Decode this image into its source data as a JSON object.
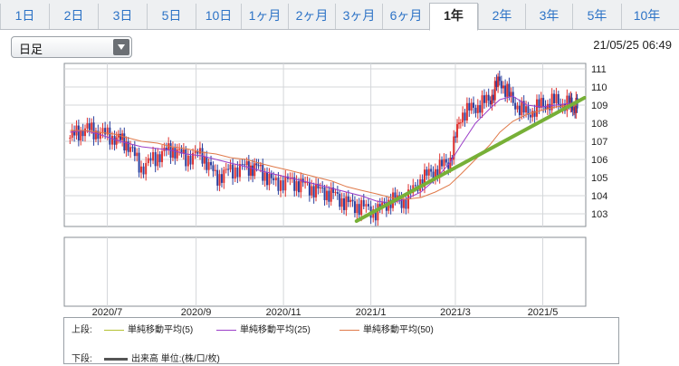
{
  "tabs": [
    "1日",
    "2日",
    "3日",
    "5日",
    "10日",
    "1ヶ月",
    "2ヶ月",
    "3ヶ月",
    "6ヶ月",
    "1年",
    "2年",
    "3年",
    "5年",
    "10年"
  ],
  "active_tab": "1年",
  "period_select": {
    "value": "日足"
  },
  "timestamp": "21/05/25 06:49",
  "colors": {
    "tab_text": "#2d73c6",
    "bull": "#e0322f",
    "bear": "#2a3f9e",
    "ma5": "#b5c234",
    "ma25": "#9b3ec8",
    "ma50": "#e07a4a",
    "trend": "#77b037"
  },
  "legend": {
    "upper_label": "上段:",
    "lower_label": "下段:",
    "ma5": "単純移動平均(5)",
    "ma25": "単純移動平均(25)",
    "ma50": "単純移動平均(50)",
    "volume": "出来高 単位:(株/口/枚)"
  },
  "chart_data": {
    "type": "line",
    "title": "",
    "xlabel": "",
    "ylabel": "",
    "x_ticks": [
      "2020/7",
      "2020/9",
      "2020/11",
      "2021/1",
      "2021/3",
      "2021/5"
    ],
    "y_ticks": [
      103,
      104,
      105,
      106,
      107,
      108,
      109,
      110,
      111
    ],
    "ylim": [
      102.3,
      111.3
    ],
    "x": [
      "2020/6/5",
      "2020/6/15",
      "2020/6/25",
      "2020/7/6",
      "2020/7/15",
      "2020/7/25",
      "2020/8/5",
      "2020/8/15",
      "2020/8/25",
      "2020/9/5",
      "2020/9/15",
      "2020/9/25",
      "2020/10/6",
      "2020/10/15",
      "2020/10/25",
      "2020/11/5",
      "2020/11/15",
      "2020/11/25",
      "2020/12/5",
      "2020/12/15",
      "2020/12/25",
      "2021/1/5",
      "2021/1/15",
      "2021/1/25",
      "2021/2/5",
      "2021/2/15",
      "2021/2/25",
      "2021/3/5",
      "2021/3/15",
      "2021/3/25",
      "2021/4/1",
      "2021/4/10",
      "2021/4/20",
      "2021/4/30",
      "2021/5/10",
      "2021/5/20",
      "2021/5/25"
    ],
    "series": [
      {
        "name": "単純移動平均(5)",
        "values": [
          107.2,
          107.7,
          107.5,
          107.2,
          106.9,
          105.5,
          106.2,
          106.6,
          106.1,
          106.3,
          105.0,
          105.4,
          105.6,
          105.5,
          104.7,
          104.8,
          104.6,
          104.3,
          104.1,
          103.6,
          103.4,
          103.1,
          103.8,
          103.7,
          104.9,
          105.4,
          105.9,
          108.5,
          108.9,
          109.3,
          110.4,
          109.2,
          108.5,
          109.0,
          109.2,
          109.0,
          108.9
        ]
      },
      {
        "name": "単純移動平均(25)",
        "values": [
          107.5,
          107.6,
          107.4,
          107.1,
          106.9,
          106.7,
          106.6,
          106.5,
          106.3,
          106.2,
          106.0,
          105.8,
          105.6,
          105.4,
          105.2,
          105.0,
          104.8,
          104.6,
          104.4,
          104.2,
          104.0,
          103.7,
          103.6,
          103.8,
          104.2,
          104.9,
          105.8,
          106.8,
          108.0,
          108.8,
          109.3,
          109.5,
          109.0,
          108.9,
          109.0,
          109.1,
          109.1
        ]
      },
      {
        "name": "単純移動平均(50)",
        "values": [
          107.6,
          107.6,
          107.5,
          107.4,
          107.2,
          107.0,
          106.9,
          106.7,
          106.6,
          106.4,
          106.3,
          106.1,
          106.0,
          105.8,
          105.6,
          105.4,
          105.2,
          105.0,
          104.8,
          104.5,
          104.3,
          104.1,
          103.9,
          103.8,
          103.9,
          104.2,
          104.6,
          105.2,
          106.0,
          106.8,
          107.5,
          108.1,
          108.5,
          108.7,
          108.9,
          109.0,
          109.0
        ]
      }
    ],
    "trendline": {
      "from": [
        "2020/12/22",
        102.6
      ],
      "to": [
        "2021/5/25",
        109.4
      ]
    },
    "grid": true
  }
}
